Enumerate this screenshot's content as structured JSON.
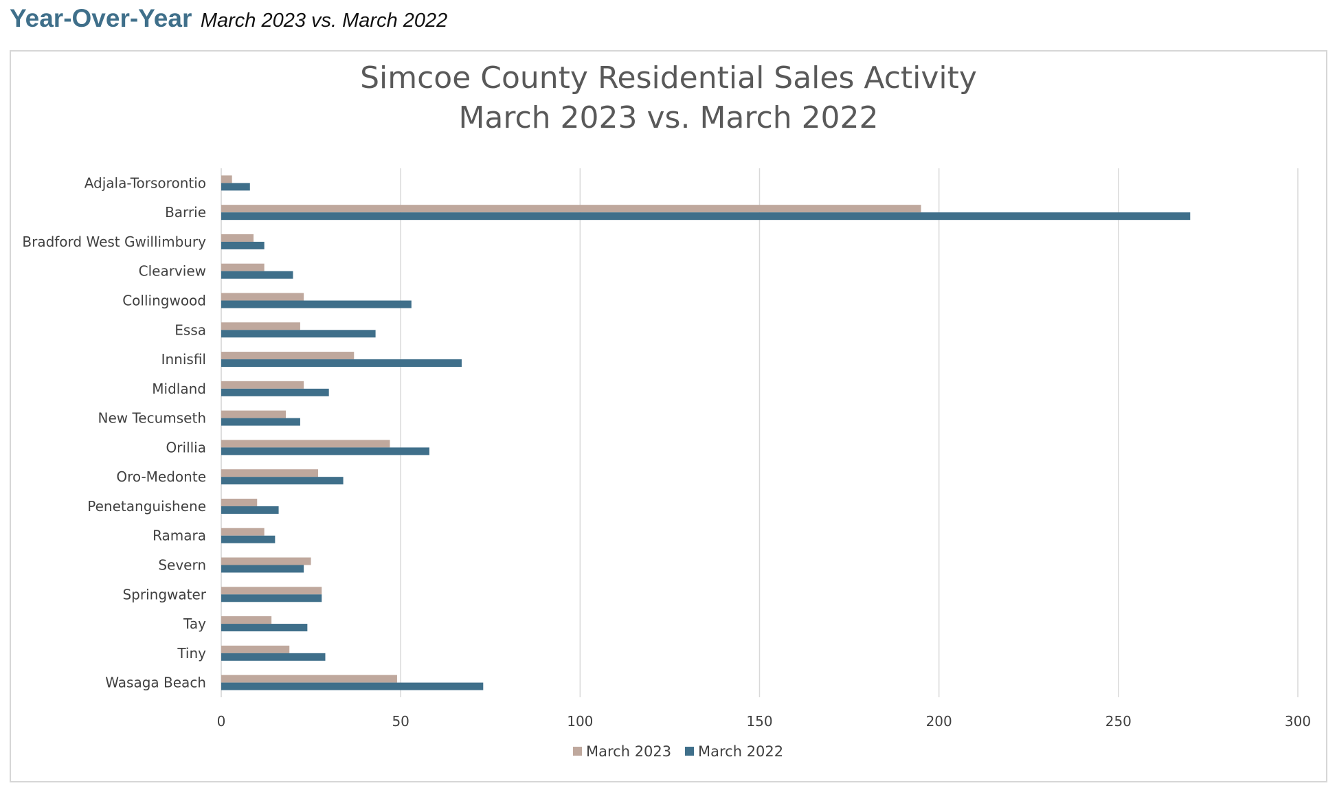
{
  "header": {
    "title": "Year-Over-Year",
    "subtitle": "March 2023 vs. March 2022"
  },
  "chart_data": {
    "type": "bar",
    "orientation": "horizontal",
    "title_lines": [
      "Simcoe County Residential Sales Activity",
      "March 2023 vs. March 2022"
    ],
    "categories": [
      "Adjala-Torsorontio",
      "Barrie",
      "Bradford West Gwillimbury",
      "Clearview",
      "Collingwood",
      "Essa",
      "Innisfil",
      "Midland",
      "New Tecumseth",
      "Orillia",
      "Oro-Medonte",
      "Penetanguishene",
      "Ramara",
      "Severn",
      "Springwater",
      "Tay",
      "Tiny",
      "Wasaga Beach"
    ],
    "series": [
      {
        "name": "March 2023",
        "color": "#bfa89d",
        "values": [
          3,
          195,
          9,
          12,
          23,
          22,
          37,
          23,
          18,
          47,
          27,
          10,
          12,
          25,
          28,
          14,
          19,
          49
        ]
      },
      {
        "name": "March 2022",
        "color": "#3f6f8a",
        "values": [
          8,
          270,
          12,
          20,
          53,
          43,
          67,
          30,
          22,
          58,
          34,
          16,
          15,
          23,
          28,
          24,
          29,
          73
        ]
      }
    ],
    "xlim": [
      0,
      300
    ],
    "xticks": [
      0,
      50,
      100,
      150,
      200,
      250,
      300
    ],
    "xtick_labels": [
      "0",
      "50",
      "100",
      "150",
      "200",
      "250",
      "300"
    ],
    "grid": "vertical",
    "legend_position": "bottom"
  }
}
